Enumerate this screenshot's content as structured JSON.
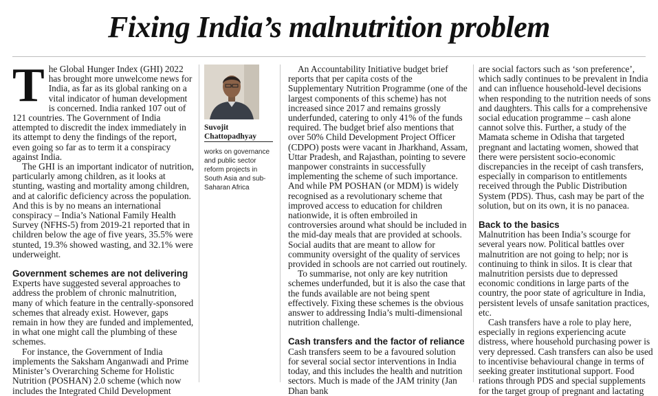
{
  "headline": "Fixing India’s malnutrition problem",
  "author": {
    "name": "Suvojit Chattopadhyay",
    "bio": "works on governance and public sector reform projects in South Asia and sub-Saharan Africa"
  },
  "col1": {
    "dropcap": "T",
    "p1": "he Global Hunger Index (GHI) 2022 has brought more unwelcome news for India, as far as its global ranking on a vital indicator of human development is concerned. India ranked 107 out of 121 countries. The Government of India attempted to discredit the index immediately in its attempt to deny the findings of the report, even going so far as to term it a conspiracy against India.",
    "p2": "The GHI is an important indicator of nutrition, particularly among children, as it looks at stunting, wasting and mortality among children, and at calorific deficiency across the population. And this is by no means an international conspiracy – India’s National Family Health Survey (NFHS-5) from 2019-21 reported that in children below the age of five years, 35.5% were stunted, 19.3% showed wasting, and 32.1% were underweight.",
    "h1": "Government schemes are not delivering",
    "p3": "Experts have suggested several approaches to address the problem of chronic malnutrition, many of which feature in the centrally-sponsored schemes that already exist. However, gaps remain in how they are funded and implemented, in what one might call the plumbing of these schemes.",
    "p4": "For instance, the Government of India implements the Saksham Anganwadi and Prime Minister’s Overarching Scheme for Holistic Nutrition (POSHAN) 2.0 scheme (which now includes the Integrated Child Development"
  },
  "col2": {
    "p1": "An Accountability Initiative budget brief reports that per capita costs of the Supplementary Nutrition Programme (one of the largest components of this scheme) has not increased since 2017 and remains grossly underfunded, catering to only 41% of the funds required. The budget brief also mentions that over 50% Child Development Project Officer (CDPO) posts were vacant in Jharkhand, Assam, Uttar Pradesh, and Rajasthan, pointing to severe manpower constraints in successfully implementing the scheme of such importance. And while PM POSHAN (or MDM) is widely recognised as a revolutionary scheme that improved access to education for children nationwide, it is often embroiled in controversies around what should be included in the mid-day meals that are provided at schools. Social audits that are meant to allow for community oversight of the quality of services provided in schools are not carried out routinely.",
    "p2": "To summarise, not only are key nutrition schemes underfunded, but it is also the case that the funds available are not being spent effectively. Fixing these schemes is the obvious answer to addressing India’s multi-dimensional nutrition challenge.",
    "h1": "Cash transfers and the factor of reliance",
    "p3": "Cash transfers seem to be a favoured solution for several social sector interventions in India today, and this includes the health and nutrition sectors. Much is made of the JAM trinity (Jan Dhan bank"
  },
  "col3": {
    "p1": "are social factors such as ‘son preference’, which sadly continues to be prevalent in India and can influence household-level decisions when responding to the nutrition needs of sons and daughters. This calls for a comprehensive social education programme – cash alone cannot solve this. Further, a study of the Mamata scheme in Odisha that targeted pregnant and lactating women, showed that there were persistent socio-economic discrepancies in the receipt of cash transfers, especially in comparison to entitlements received through the Public Distribution System (PDS). Thus, cash may be part of the solution, but on its own, it is no panacea.",
    "h1": "Back to the basics",
    "p2": "Malnutrition has been India’s scourge for several years now. Political battles over malnutrition are not going to help; nor is continuing to think in silos. It is clear that malnutrition persists due to depressed economic conditions in large parts of the country, the poor state of agriculture in India, persistent levels of unsafe sanitation practices, etc.",
    "p3": "Cash transfers have a role to play here, especially in regions experiencing acute distress, where household purchasing power is very depressed. Cash transfers can also be used to incentivise behavioural change in terms of seeking greater institutional support. Food rations through PDS and special supplements for the target group of pregnant and lactating"
  }
}
